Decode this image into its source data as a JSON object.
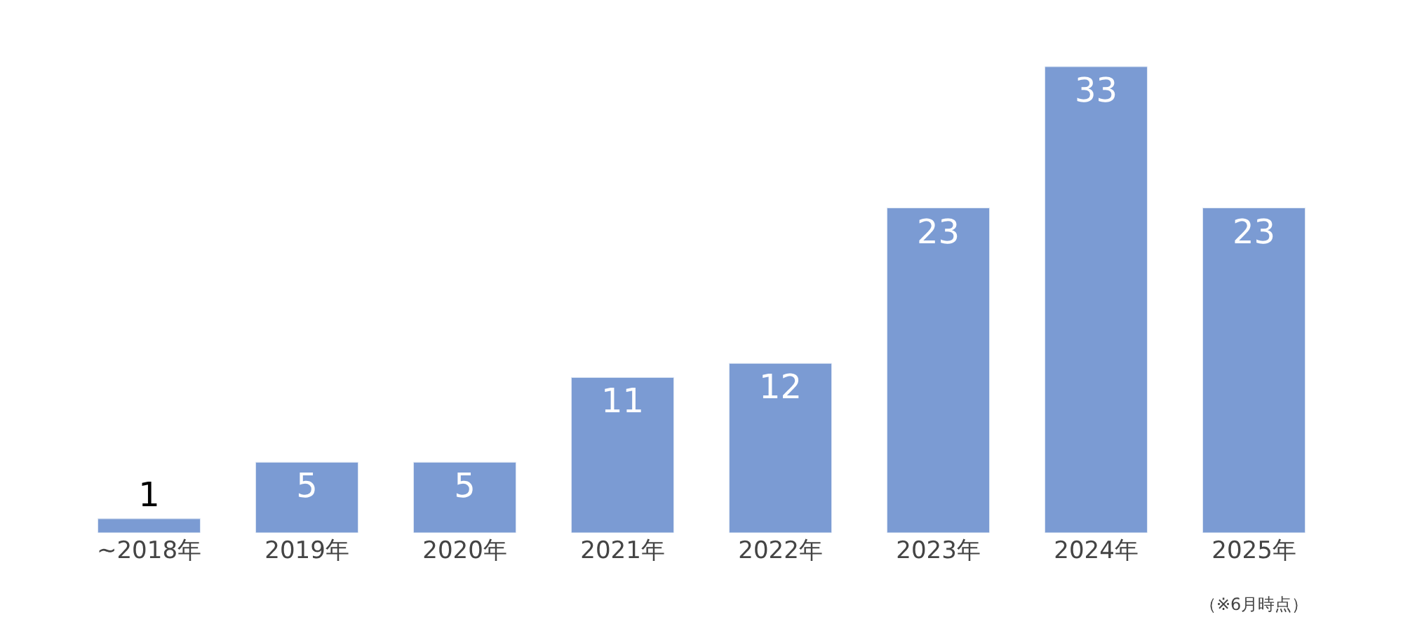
{
  "chart_data": {
    "type": "bar",
    "categories": [
      "~2018年",
      "2019年",
      "2020年",
      "2021年",
      "2022年",
      "2023年",
      "2024年",
      "2025年"
    ],
    "values": [
      1,
      5,
      5,
      11,
      12,
      23,
      33,
      23
    ],
    "annotations": [
      "（※6月時点）"
    ],
    "color": "#7b9bd3",
    "data_labels": true,
    "legend": false
  }
}
